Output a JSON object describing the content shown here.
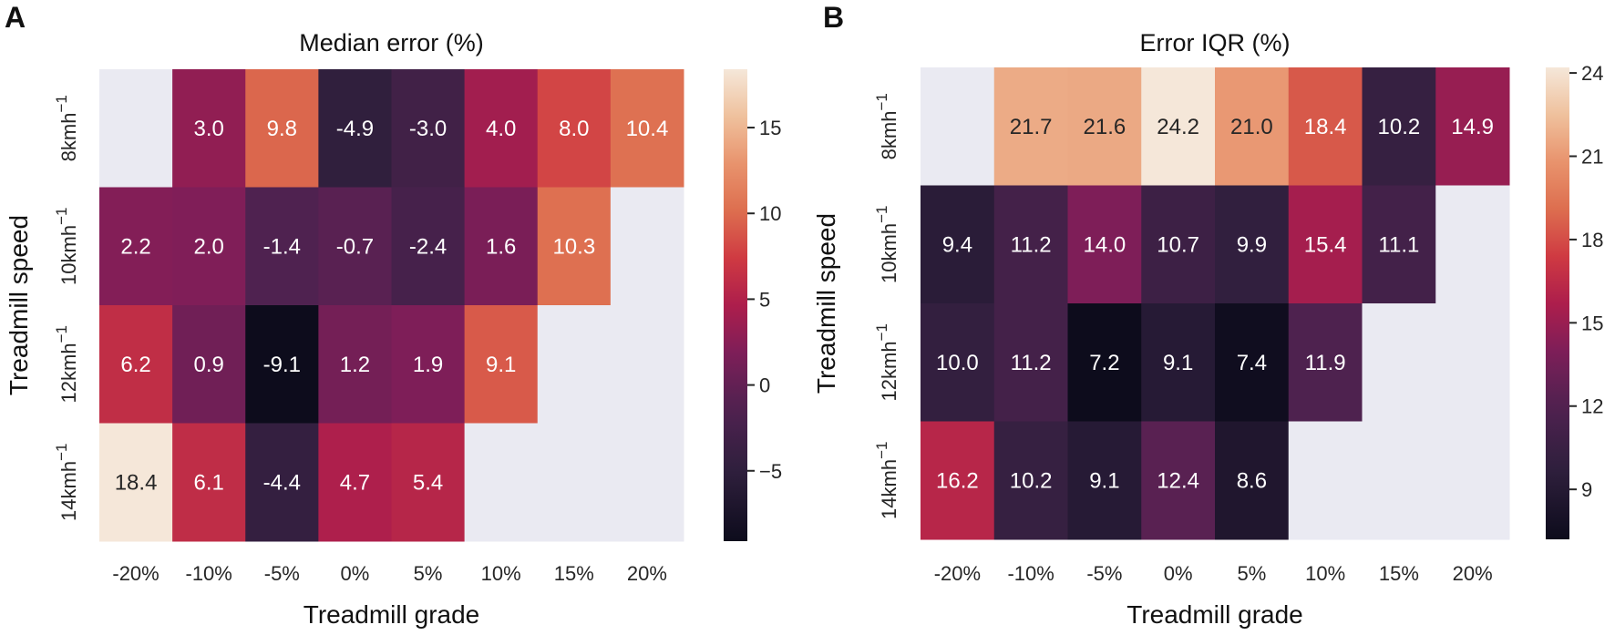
{
  "panels": [
    {
      "letter": "A"
    },
    {
      "letter": "B"
    }
  ],
  "chart_data": [
    {
      "type": "heatmap",
      "title": "Median error (%)",
      "xlabel": "Treadmill grade",
      "ylabel": "Treadmill speed",
      "x_categories": [
        "-20%",
        "-10%",
        "-5%",
        "0%",
        "5%",
        "10%",
        "15%",
        "20%"
      ],
      "y_categories": [
        {
          "base": "8kmh",
          "sup": "−1"
        },
        {
          "base": "10kmh",
          "sup": "−1"
        },
        {
          "base": "12kmh",
          "sup": "−1"
        },
        {
          "base": "14kmh",
          "sup": "−1"
        }
      ],
      "values": [
        [
          null,
          3.0,
          9.8,
          -4.9,
          -3.0,
          4.0,
          8.0,
          10.4
        ],
        [
          2.2,
          2.0,
          -1.4,
          -0.7,
          -2.4,
          1.6,
          10.3,
          null
        ],
        [
          6.2,
          0.9,
          -9.1,
          1.2,
          1.9,
          9.1,
          null,
          null
        ],
        [
          18.4,
          6.1,
          -4.4,
          4.7,
          5.4,
          null,
          null,
          null
        ]
      ],
      "colorbar": {
        "min": -9.1,
        "max": 18.4,
        "ticks": [
          -5,
          0,
          5,
          10,
          15
        ],
        "tick_labels": [
          "−5",
          "0",
          "5",
          "10",
          "15"
        ]
      },
      "colormap": "rocket",
      "missing_color": "#eaeaf2"
    },
    {
      "type": "heatmap",
      "title": "Error IQR (%)",
      "xlabel": "Treadmill grade",
      "ylabel": "Treadmill speed",
      "x_categories": [
        "-20%",
        "-10%",
        "-5%",
        "0%",
        "5%",
        "10%",
        "15%",
        "20%"
      ],
      "y_categories": [
        {
          "base": "8kmh",
          "sup": "−1"
        },
        {
          "base": "10kmh",
          "sup": "−1"
        },
        {
          "base": "12kmh",
          "sup": "−1"
        },
        {
          "base": "14kmh",
          "sup": "−1"
        }
      ],
      "values": [
        [
          null,
          21.7,
          21.6,
          24.2,
          21.0,
          18.4,
          10.2,
          14.9
        ],
        [
          9.4,
          11.2,
          14.0,
          10.7,
          9.9,
          15.4,
          11.1,
          null
        ],
        [
          10.0,
          11.2,
          7.2,
          9.1,
          7.4,
          11.9,
          null,
          null
        ],
        [
          16.2,
          10.2,
          9.1,
          12.4,
          8.6,
          null,
          null,
          null
        ]
      ],
      "colorbar": {
        "min": 7.2,
        "max": 24.2,
        "ticks": [
          9,
          12,
          15,
          18,
          21,
          24
        ],
        "tick_labels": [
          "9",
          "12",
          "15",
          "18",
          "21",
          "24"
        ]
      },
      "colormap": "rocket",
      "missing_color": "#eaeaf2"
    }
  ]
}
